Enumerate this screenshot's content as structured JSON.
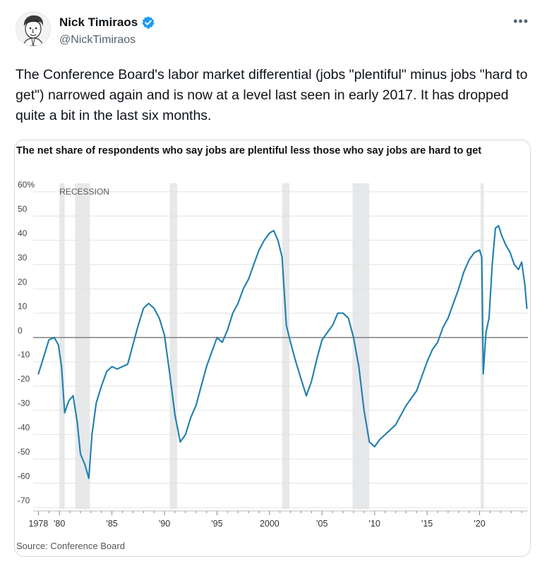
{
  "tweet": {
    "display_name": "Nick Timiraos",
    "handle": "@NickTimiraos",
    "more_icon": "more-horizontal-icon",
    "verified_icon": "verified-badge-icon",
    "verified_color": "#1d9bf0",
    "text": "The Conference Board's labor market differential (jobs \"plentiful\" minus jobs \"hard to get\") narrowed again and is now at a level last seen in early 2017. It has dropped quite a bit in the last six months."
  },
  "chart_data": {
    "type": "line",
    "title": "The net share of respondents who say jobs are plentiful less those who say jobs are hard to get",
    "source": "Source: Conference Board",
    "recession_label": "RECESSION",
    "y_tick_labels": [
      "60%",
      "50",
      "40",
      "30",
      "20",
      "10",
      "0",
      "-10",
      "-20",
      "-30",
      "-40",
      "-50",
      "-60",
      "-70"
    ],
    "y_tick_values": [
      60,
      50,
      40,
      30,
      20,
      10,
      0,
      -10,
      -20,
      -30,
      -40,
      -50,
      -60,
      -70
    ],
    "x_tick_labels": [
      "1978",
      "'80",
      "'85",
      "'90",
      "'95",
      "2000",
      "'05",
      "'10",
      "'15",
      "'20"
    ],
    "x_tick_values": [
      1978,
      1980,
      1985,
      1990,
      1995,
      2000,
      2005,
      2010,
      2015,
      2020
    ],
    "xlim": [
      1977.5,
      2024.6
    ],
    "ylim": [
      -70,
      60
    ],
    "line_color": "#1f7fad",
    "recessions": [
      [
        1980.0,
        1980.5
      ],
      [
        1981.5,
        1982.9
      ],
      [
        1990.5,
        1991.2
      ],
      [
        2001.2,
        2001.9
      ],
      [
        2007.9,
        2009.5
      ],
      [
        2020.1,
        2020.4
      ]
    ],
    "series": [
      {
        "x": [
          1978.0,
          1978.5,
          1979.0,
          1979.5,
          1979.9,
          1980.2,
          1980.5,
          1980.9,
          1981.3,
          1981.7,
          1982.0,
          1982.4,
          1982.8,
          1983.1,
          1983.5,
          1984.0,
          1984.5,
          1985.0,
          1985.5,
          1986.0,
          1986.5,
          1987.0,
          1987.5,
          1988.0,
          1988.5,
          1989.0,
          1989.5,
          1990.0,
          1990.5,
          1991.0,
          1991.5,
          1992.0,
          1992.5,
          1993.0,
          1993.5,
          1994.0,
          1994.5,
          1995.0,
          1995.5,
          1996.0,
          1996.5,
          1997.0,
          1997.5,
          1998.0,
          1998.5,
          1999.0,
          1999.5,
          2000.0,
          2000.4,
          2000.8,
          2001.2,
          2001.6,
          2002.0,
          2002.5,
          2003.0,
          2003.5,
          2004.0,
          2004.5,
          2005.0,
          2005.5,
          2006.0,
          2006.5,
          2007.0,
          2007.5,
          2008.0,
          2008.5,
          2009.0,
          2009.5,
          2010.0,
          2010.5,
          2011.0,
          2011.5,
          2012.0,
          2012.5,
          2013.0,
          2013.5,
          2014.0,
          2014.5,
          2015.0,
          2015.5,
          2016.0,
          2016.5,
          2017.0,
          2017.5,
          2018.0,
          2018.5,
          2019.0,
          2019.5,
          2020.0,
          2020.2,
          2020.35,
          2020.6,
          2020.9,
          2021.2,
          2021.5,
          2021.8,
          2022.1,
          2022.5,
          2022.9,
          2023.3,
          2023.7,
          2024.0,
          2024.3,
          2024.5
        ],
        "y": [
          -15,
          -8,
          -1,
          0,
          -3,
          -12,
          -31,
          -26,
          -24,
          -35,
          -48,
          -52,
          -58,
          -40,
          -27,
          -20,
          -14,
          -12,
          -13,
          -12,
          -11,
          -3,
          5,
          12,
          14,
          12,
          8,
          1,
          -15,
          -32,
          -43,
          -40,
          -33,
          -28,
          -20,
          -12,
          -6,
          0,
          -2,
          3,
          10,
          14,
          20,
          24,
          30,
          36,
          40,
          43,
          44,
          40,
          33,
          5,
          -2,
          -10,
          -17,
          -24,
          -18,
          -9,
          -1,
          2,
          5,
          10,
          10,
          8,
          0,
          -12,
          -30,
          -43,
          -45,
          -42,
          -40,
          -38,
          -36,
          -32,
          -28,
          -25,
          -22,
          -16,
          -10,
          -5,
          -2,
          4,
          8,
          14,
          20,
          27,
          32,
          35,
          36,
          33,
          -15,
          2,
          8,
          30,
          45,
          46,
          42,
          38,
          35,
          30,
          28,
          31,
          22,
          12
        ]
      }
    ]
  }
}
